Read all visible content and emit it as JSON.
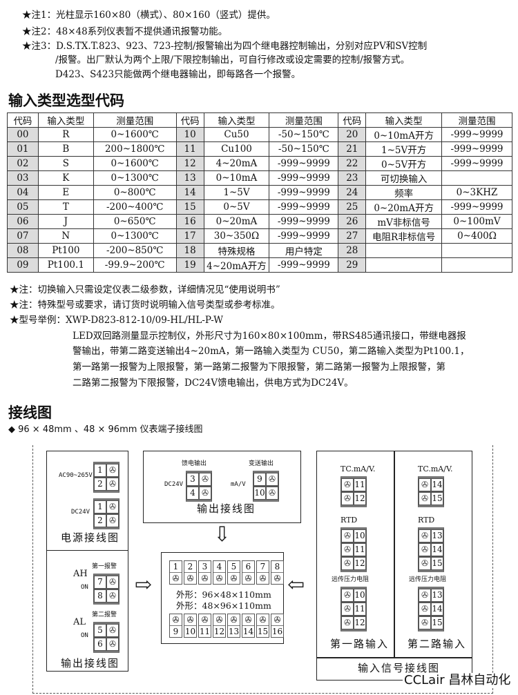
{
  "notes_top": [
    "★注1：光柱显示160×80（横式）、80×160（竖式）提供。",
    "★注2：48×48系列仪表暂不提供通讯报警功能。",
    "★注3：D.S.TX.T.823、923、723-控制/报警输出为四个继电器控制输出，分别对应PV和SV控制",
    "/报警。出厂默认为两个上限/下限控制输出，可自行修改或设定需要的控制/报警方式。",
    "D423、S423只能做两个继电器输出，即每路各一个报警。"
  ],
  "section1_title": "输入类型选型代码",
  "table": {
    "headers": [
      "代码",
      "输入类型",
      "测量范围",
      "代码",
      "输入类型",
      "测量范围",
      "代码",
      "输入类型",
      "测量范围"
    ],
    "rows": [
      [
        "00",
        "R",
        "0~1600℃",
        "10",
        "Cu50",
        "-50~150℃",
        "20",
        "0~10mA开方",
        "-999~9999"
      ],
      [
        "01",
        "B",
        "200~1800℃",
        "11",
        "Cu100",
        "-50~150℃",
        "21",
        "1~5V开方",
        "-999~9999"
      ],
      [
        "02",
        "S",
        "0~1600℃",
        "12",
        "4~20mA",
        "-999~9999",
        "22",
        "0~5V开方",
        "-999~9999"
      ],
      [
        "03",
        "K",
        "0~1300℃",
        "13",
        "0~10mA",
        "-999~9999",
        "23",
        "可切换输入",
        ""
      ],
      [
        "04",
        "E",
        "0~800℃",
        "14",
        "1~5V",
        "-999~9999",
        "24",
        "频率",
        "0~3KHZ"
      ],
      [
        "05",
        "T",
        "-200~400℃",
        "15",
        "0~5V",
        "-999~9999",
        "25",
        "0~20mA开方",
        "-999~9999"
      ],
      [
        "06",
        "J",
        "0~650℃",
        "16",
        "0~20mA",
        "-999~9999",
        "26",
        "mV非标信号",
        "0~100mV"
      ],
      [
        "07",
        "N",
        "0~1300℃",
        "17",
        "30~350Ω",
        "-999~9999",
        "27",
        "电阻R非标信号",
        "0~400Ω"
      ],
      [
        "08",
        "Pt100",
        "-200~850℃",
        "18",
        "特殊规格",
        "用户特定",
        "28",
        "",
        ""
      ],
      [
        "09",
        "Pt100.1",
        "-99.9~200℃",
        "19",
        "4~20mA开方",
        "-999~9999",
        "29",
        "",
        ""
      ]
    ]
  },
  "notes_bottom": [
    "★注：切换输入只需设定仪表二级参数，详细情况见“使用说明书”",
    "★注：特殊型号或要求，请订货时说明输入信号类型或参考标准。",
    "★型号举例：XWP-D823-812-10/09-HL/HL-P-W"
  ],
  "example_desc": [
    "LED双回路测量显示控制仪，外形尺寸为160×80×100mm，带RS485通讯接口，带继电器报",
    "警输出，带第二路变送输出4~20mA，第一路输入类型为 CU50，第二路输入类型为Pt100.1，",
    "第一路第一报警为上限报警，第一路第二报警为下限报警，第二路第一报警为上限报警，第",
    "二路第二报警为下限报警，DC24V馈电输出，供电方式为DC24V。"
  ],
  "section2_title": "接线图",
  "section2_subtitle": "◆ 96 × 48mm 、48 × 96mm 仪表端子接线图",
  "wiring": {
    "power": {
      "ac_label": "AC90~265V",
      "dc_label": "DC24V",
      "title": "电源接线图",
      "ac_terms": [
        "1",
        "2"
      ],
      "dc_terms": [
        "1",
        "2"
      ]
    },
    "alarm": {
      "alarm1_label": "第一报警",
      "ah": "AH",
      "on1": "ON",
      "alarm1_terms": [
        "7",
        "8"
      ],
      "alarm2_label": "第二报警",
      "al": "AL",
      "on2": "ON",
      "alarm2_terms": [
        "5",
        "6"
      ],
      "title": "输出接线图"
    },
    "output": {
      "feed_label": "馈电输出",
      "feed_dc": "DC24V",
      "feed_terms": [
        "3",
        "4"
      ],
      "trans_label": "变送输出",
      "trans_unit": "mA/V",
      "trans_terms": [
        "9",
        "10"
      ],
      "title": "输出接线图"
    },
    "center": {
      "top_terms": [
        "1",
        "2",
        "3",
        "4",
        "5",
        "6",
        "7",
        "8"
      ],
      "size1": "外形：96×48×110mm",
      "size2": "外形：48×96×110mm",
      "bottom_terms": [
        "9",
        "10",
        "11",
        "12",
        "13",
        "14",
        "15",
        "16"
      ]
    },
    "input1": {
      "tc": "TC.mA/V.",
      "tc_terms": [
        "11",
        "12"
      ],
      "rtd": "RTD",
      "rtd_terms": [
        "10",
        "11",
        "12"
      ],
      "remote": "远传压力电阻",
      "remote_terms": [
        "10",
        "11",
        "12"
      ],
      "title": "第一路输入"
    },
    "input2": {
      "tc": "TC.mA/V.",
      "tc_terms": [
        "14",
        "15"
      ],
      "rtd": "RTD",
      "rtd_terms": [
        "13",
        "14",
        "15"
      ],
      "remote": "远传压力电阻",
      "remote_terms": [
        "13",
        "14",
        "15"
      ],
      "title": "第二路输入"
    },
    "input_title": "输入信号接线图"
  },
  "watermark": "CCLair 昌林自动化"
}
